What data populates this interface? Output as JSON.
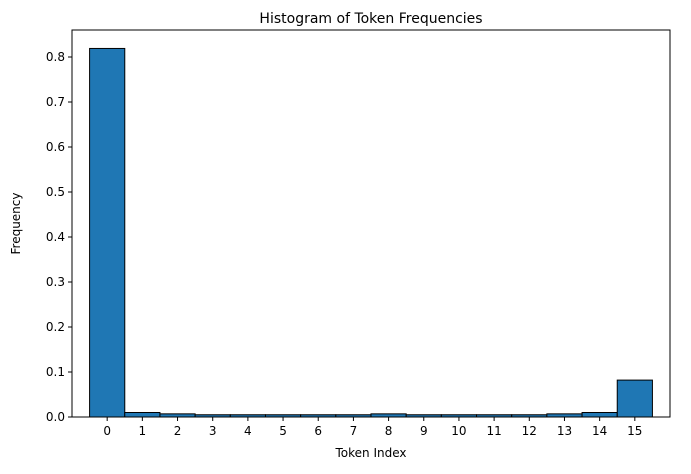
{
  "chart_data": {
    "type": "bar",
    "title": "Histogram of Token Frequencies",
    "xlabel": "Token Index",
    "ylabel": "Frequency",
    "categories": [
      "0",
      "1",
      "2",
      "3",
      "4",
      "5",
      "6",
      "7",
      "8",
      "9",
      "10",
      "11",
      "12",
      "13",
      "14",
      "15"
    ],
    "values": [
      0.819,
      0.01,
      0.007,
      0.005,
      0.005,
      0.005,
      0.005,
      0.005,
      0.007,
      0.005,
      0.005,
      0.005,
      0.005,
      0.007,
      0.01,
      0.082
    ],
    "yticks": [
      0.0,
      0.1,
      0.2,
      0.3,
      0.4,
      0.5,
      0.6,
      0.7,
      0.8
    ],
    "ytick_labels": [
      "0.0",
      "0.1",
      "0.2",
      "0.3",
      "0.4",
      "0.5",
      "0.6",
      "0.7",
      "0.8"
    ],
    "xlim": [
      -1,
      16
    ],
    "ylim": [
      0,
      0.86
    ],
    "grid": false,
    "legend": "none",
    "bar_color": "#1f77b4",
    "edge_color": "#000000"
  }
}
